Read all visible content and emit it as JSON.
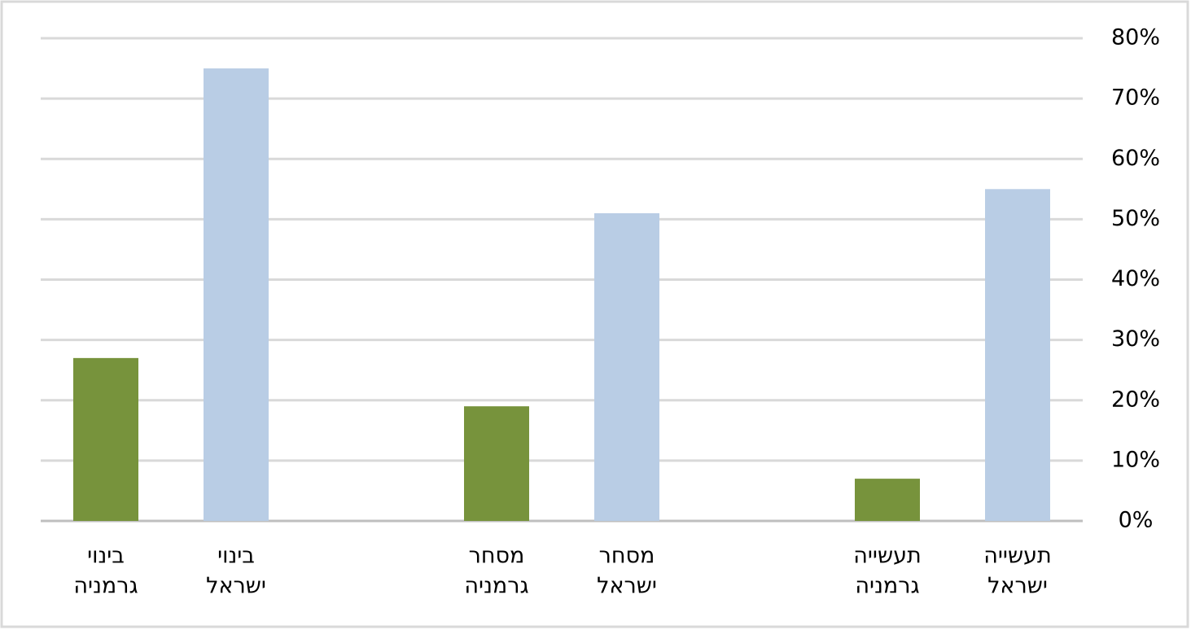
{
  "chart_data": {
    "type": "bar",
    "categories": [
      [
        "בינוי",
        "גרמניה"
      ],
      [
        "בינוי",
        "ישראל"
      ],
      null,
      [
        "מסחר",
        "גרמניה"
      ],
      [
        "מסחר",
        "ישראל"
      ],
      null,
      [
        "תעשייה",
        "גרמניה"
      ],
      [
        "תעשייה",
        "ישראל"
      ]
    ],
    "values": [
      27,
      75,
      null,
      19,
      51,
      null,
      7,
      55
    ],
    "colors": [
      "#77933c",
      "#b9cde5",
      null,
      "#77933c",
      "#b9cde5",
      null,
      "#77933c",
      "#b9cde5"
    ],
    "ylim": [
      0,
      80
    ],
    "yticks": [
      {
        "value": 0,
        "label": "0%"
      },
      {
        "value": 10,
        "label": "10%"
      },
      {
        "value": 20,
        "label": "20%"
      },
      {
        "value": 30,
        "label": "30%"
      },
      {
        "value": 40,
        "label": "40%"
      },
      {
        "value": 50,
        "label": "50%"
      },
      {
        "value": 60,
        "label": "60%"
      },
      {
        "value": 70,
        "label": "70%"
      },
      {
        "value": 80,
        "label": "80%"
      }
    ],
    "y_axis_side": "right",
    "grid": true
  }
}
